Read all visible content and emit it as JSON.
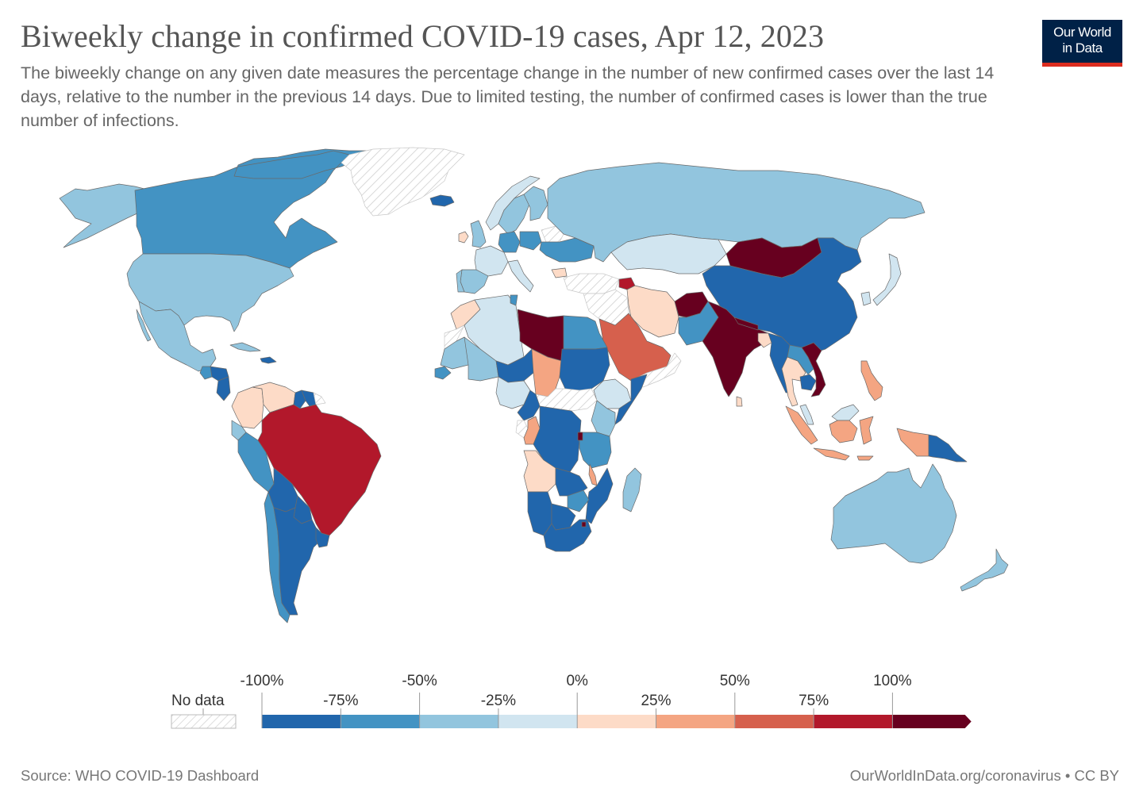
{
  "header": {
    "title": "Biweekly change in confirmed COVID-19 cases, Apr 12, 2023",
    "subtitle": "The biweekly change on any given date measures the percentage change in the number of new confirmed cases over the last 14 days, relative to the number in the previous 14 days. Due to limited testing, the number of confirmed cases is lower than the true number of infections.",
    "logo_line1": "Our World",
    "logo_line2": "in Data"
  },
  "colors": {
    "logo_bg": "#002147",
    "logo_accent": "#dc2c1f",
    "bins": [
      "#2166ac",
      "#4393c3",
      "#92c5de",
      "#d1e5f0",
      "#fddbc7",
      "#f4a582",
      "#d6604d",
      "#b2182b",
      "#67001f"
    ],
    "no_data_stroke": "#c8c8c8"
  },
  "legend": {
    "no_data_label": "No data",
    "ticks_top": [
      "-100%",
      "-50%",
      "0%",
      "50%",
      "100%"
    ],
    "ticks_bottom": [
      "-75%",
      "-25%",
      "25%",
      "75%"
    ],
    "bins": [
      {
        "from": -100,
        "to": -75,
        "color": "#2166ac"
      },
      {
        "from": -75,
        "to": -50,
        "color": "#4393c3"
      },
      {
        "from": -50,
        "to": -25,
        "color": "#92c5de"
      },
      {
        "from": -25,
        "to": 0,
        "color": "#d1e5f0"
      },
      {
        "from": 0,
        "to": 25,
        "color": "#fddbc7"
      },
      {
        "from": 25,
        "to": 50,
        "color": "#f4a582"
      },
      {
        "from": 50,
        "to": 75,
        "color": "#d6604d"
      },
      {
        "from": 75,
        "to": 100,
        "color": "#b2182b"
      },
      {
        "from": 100,
        "to": null,
        "color": "#67001f"
      }
    ]
  },
  "chart_data": {
    "type": "choropleth",
    "title": "Biweekly change in confirmed COVID-19 cases, Apr 12, 2023",
    "metric": "biweekly % change in confirmed cases",
    "scale_bins": [
      -100,
      -75,
      -50,
      -25,
      0,
      25,
      50,
      75,
      100
    ],
    "countries": [
      {
        "name": "Canada",
        "bin": "-75% to -50%"
      },
      {
        "name": "United States",
        "bin": "-50% to -25%"
      },
      {
        "name": "Alaska (US)",
        "bin": "-50% to -25%"
      },
      {
        "name": "Mexico",
        "bin": "-50% to -25%"
      },
      {
        "name": "Greenland",
        "bin": "No data"
      },
      {
        "name": "Iceland",
        "bin": "-100% to -75%"
      },
      {
        "name": "Guatemala",
        "bin": "-75% to -50%"
      },
      {
        "name": "Honduras",
        "bin": "-100% to -75%"
      },
      {
        "name": "Nicaragua",
        "bin": "-100% to -75%"
      },
      {
        "name": "Cuba",
        "bin": "-50% to -25%"
      },
      {
        "name": "Dominican Republic / Haiti",
        "bin": "-100% to -75%"
      },
      {
        "name": "Colombia",
        "bin": "0% to 25%"
      },
      {
        "name": "Venezuela",
        "bin": "0% to 25%"
      },
      {
        "name": "Guyana",
        "bin": "-100% to -75%"
      },
      {
        "name": "Suriname",
        "bin": "-100% to -75%"
      },
      {
        "name": "French Guiana",
        "bin": "No data"
      },
      {
        "name": "Ecuador",
        "bin": "-50% to -25%"
      },
      {
        "name": "Peru",
        "bin": "-75% to -50%"
      },
      {
        "name": "Brazil",
        "bin": "75% to 100%"
      },
      {
        "name": "Bolivia",
        "bin": "-100% to -75%"
      },
      {
        "name": "Paraguay",
        "bin": "-100% to -75%"
      },
      {
        "name": "Chile",
        "bin": "-75% to -50%"
      },
      {
        "name": "Argentina",
        "bin": "-100% to -75%"
      },
      {
        "name": "Uruguay",
        "bin": "-100% to -75%"
      },
      {
        "name": "United Kingdom",
        "bin": "-50% to -25%"
      },
      {
        "name": "Ireland",
        "bin": "0% to 25%"
      },
      {
        "name": "France",
        "bin": "-25% to 0%"
      },
      {
        "name": "Spain",
        "bin": "-50% to -25%"
      },
      {
        "name": "Portugal",
        "bin": "-50% to -25%"
      },
      {
        "name": "Germany",
        "bin": "-75% to -50%"
      },
      {
        "name": "Poland",
        "bin": "-75% to -50%"
      },
      {
        "name": "Italy",
        "bin": "-25% to 0%"
      },
      {
        "name": "Ukraine",
        "bin": "-75% to -50%"
      },
      {
        "name": "Belarus",
        "bin": "No data"
      },
      {
        "name": "Norway",
        "bin": "-25% to 0%"
      },
      {
        "name": "Sweden",
        "bin": "-50% to -25%"
      },
      {
        "name": "Finland",
        "bin": "-50% to -25%"
      },
      {
        "name": "Bulgaria",
        "bin": "0% to 25%"
      },
      {
        "name": "Russia",
        "bin": "-50% to -25%"
      },
      {
        "name": "Kazakhstan",
        "bin": "-25% to 0%"
      },
      {
        "name": "Mongolia",
        "bin": "100%+"
      },
      {
        "name": "China",
        "bin": "-100% to -75%"
      },
      {
        "name": "Japan",
        "bin": "-25% to 0%"
      },
      {
        "name": "South Korea",
        "bin": "-25% to 0%"
      },
      {
        "name": "Turkey",
        "bin": "No data"
      },
      {
        "name": "Azerbaijan",
        "bin": "75% to 100%"
      },
      {
        "name": "Iran",
        "bin": "0% to 25%"
      },
      {
        "name": "Afghanistan",
        "bin": "100%+"
      },
      {
        "name": "Pakistan",
        "bin": "-75% to -50%"
      },
      {
        "name": "India",
        "bin": "100%+"
      },
      {
        "name": "Nepal",
        "bin": "100%+"
      },
      {
        "name": "Bangladesh",
        "bin": "0% to 25%"
      },
      {
        "name": "Myanmar",
        "bin": "-100% to -75%"
      },
      {
        "name": "Thailand",
        "bin": "0% to 25%"
      },
      {
        "name": "Laos",
        "bin": "-75% to -50%"
      },
      {
        "name": "Cambodia",
        "bin": "-100% to -75%"
      },
      {
        "name": "Vietnam",
        "bin": "100%+"
      },
      {
        "name": "Sri Lanka",
        "bin": "0% to 25%"
      },
      {
        "name": "Saudi Arabia",
        "bin": "50% to 75%"
      },
      {
        "name": "Iraq / Syria / Jordan",
        "bin": "No data"
      },
      {
        "name": "Yemen / Oman",
        "bin": "No data"
      },
      {
        "name": "Philippines",
        "bin": "25% to 50%"
      },
      {
        "name": "Indonesia",
        "bin": "25% to 50%"
      },
      {
        "name": "Malaysia",
        "bin": "-25% to 0%"
      },
      {
        "name": "Papua New Guinea",
        "bin": "-100% to -75%"
      },
      {
        "name": "Australia",
        "bin": "-50% to -25%"
      },
      {
        "name": "New Zealand",
        "bin": "-50% to -25%"
      },
      {
        "name": "Morocco",
        "bin": "0% to 25%"
      },
      {
        "name": "Western Sahara",
        "bin": "No data"
      },
      {
        "name": "Algeria",
        "bin": "-25% to 0%"
      },
      {
        "name": "Tunisia",
        "bin": "-75% to -50%"
      },
      {
        "name": "Libya",
        "bin": "100%+"
      },
      {
        "name": "Egypt",
        "bin": "-75% to -50%"
      },
      {
        "name": "Mauritania",
        "bin": "-50% to -25%"
      },
      {
        "name": "Mali",
        "bin": "-50% to -25%"
      },
      {
        "name": "Niger",
        "bin": "-100% to -75%"
      },
      {
        "name": "Chad",
        "bin": "25% to 50%"
      },
      {
        "name": "Sudan",
        "bin": "-100% to -75%"
      },
      {
        "name": "Senegal",
        "bin": "-75% to -50%"
      },
      {
        "name": "Nigeria",
        "bin": "-25% to 0%"
      },
      {
        "name": "Ethiopia",
        "bin": "-25% to 0%"
      },
      {
        "name": "Somalia",
        "bin": "-100% to -75%"
      },
      {
        "name": "Central African Republic / South Sudan",
        "bin": "No data"
      },
      {
        "name": "Cameroon",
        "bin": "-100% to -75%"
      },
      {
        "name": "Congo",
        "bin": "25% to 50%"
      },
      {
        "name": "Gabon",
        "bin": "No data"
      },
      {
        "name": "DR Congo",
        "bin": "-100% to -75%"
      },
      {
        "name": "Kenya",
        "bin": "-50% to -25%"
      },
      {
        "name": "Tanzania",
        "bin": "-75% to -50%"
      },
      {
        "name": "Burundi",
        "bin": "100%+"
      },
      {
        "name": "Angola",
        "bin": "0% to 25%"
      },
      {
        "name": "Zambia",
        "bin": "-100% to -75%"
      },
      {
        "name": "Malawi",
        "bin": "25% to 50%"
      },
      {
        "name": "Mozambique",
        "bin": "-100% to -75%"
      },
      {
        "name": "Zimbabwe",
        "bin": "-75% to -50%"
      },
      {
        "name": "Namibia",
        "bin": "-100% to -75%"
      },
      {
        "name": "Botswana",
        "bin": "-100% to -75%"
      },
      {
        "name": "South Africa",
        "bin": "-100% to -75%"
      },
      {
        "name": "Eswatini",
        "bin": "100%+"
      },
      {
        "name": "Madagascar",
        "bin": "-50% to -25%"
      }
    ]
  },
  "footer": {
    "source": "Source: WHO COVID-19 Dashboard",
    "credit": "OurWorldInData.org/coronavirus • CC BY"
  }
}
